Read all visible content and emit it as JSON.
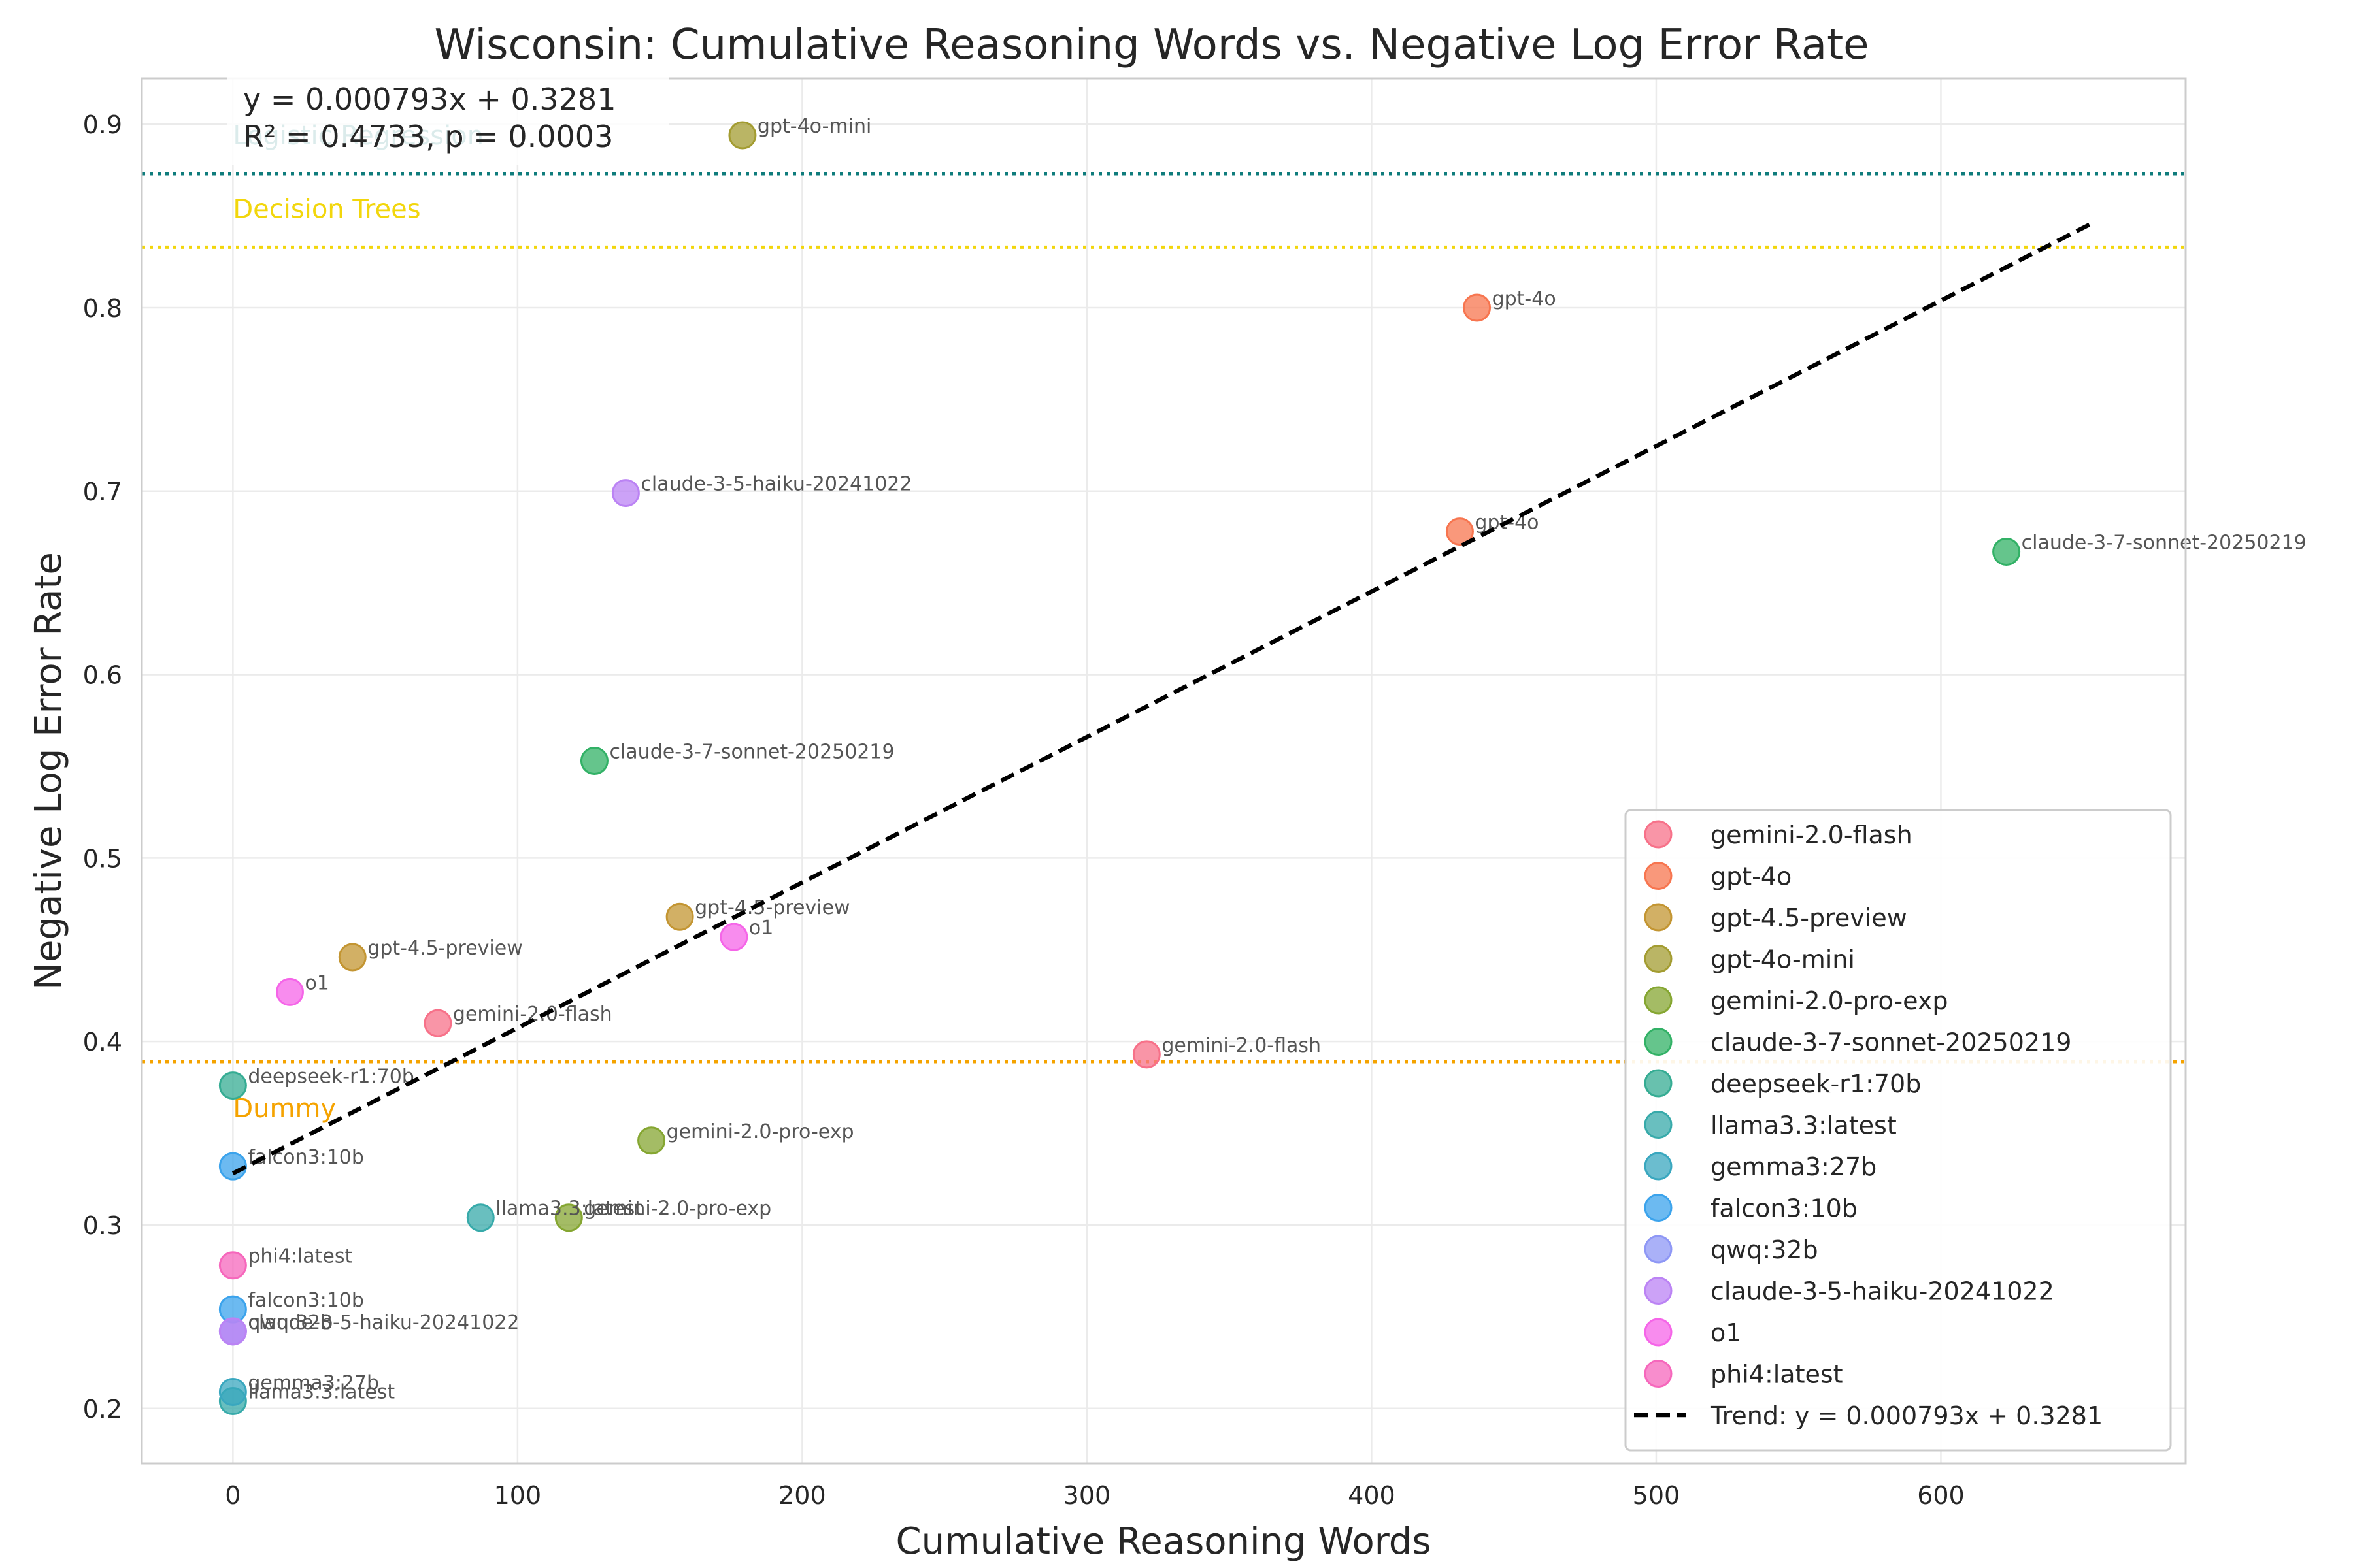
{
  "chart_data": {
    "type": "scatter",
    "title": "Wisconsin: Cumulative Reasoning Words vs. Negative Log Error Rate",
    "xlabel": "Cumulative Reasoning Words",
    "ylabel": "Negative Log Error Rate",
    "xlim": [
      -32,
      686
    ],
    "ylim": [
      0.17,
      0.925
    ],
    "x_ticks": [
      0,
      100,
      200,
      300,
      400,
      500,
      600
    ],
    "y_ticks": [
      0.2,
      0.3,
      0.4,
      0.5,
      0.6,
      0.7,
      0.8,
      0.9
    ],
    "x_tick_labels": [
      "0",
      "100",
      "200",
      "300",
      "400",
      "500",
      "600"
    ],
    "y_tick_labels": [
      "0.2",
      "0.3",
      "0.4",
      "0.5",
      "0.6",
      "0.7",
      "0.8",
      "0.9"
    ],
    "grid": true,
    "legend_position": "lower-right",
    "stats_text": [
      "y = 0.000793x + 0.3281",
      "R² = 0.4733, p = 0.0003"
    ],
    "trend": {
      "label": "Trend: y = 0.000793x + 0.3281",
      "slope": 0.000793,
      "intercept": 0.3281,
      "x_range": [
        0,
        653
      ],
      "color": "#000000"
    },
    "baselines": [
      {
        "label": "Logistic Regression",
        "y": 0.873,
        "color": "#0f7c7c"
      },
      {
        "label": "Decision Trees",
        "y": 0.833,
        "color": "#f2d60c"
      },
      {
        "label": "Dummy",
        "y": 0.389,
        "color": "#f5a300"
      }
    ],
    "series": [
      {
        "name": "gemini-2.0-flash",
        "color": "#f77189",
        "points": [
          {
            "x": 72,
            "y": 0.41,
            "label": "gemini-2.0-flash"
          },
          {
            "x": 321,
            "y": 0.393,
            "label": "gemini-2.0-flash"
          }
        ]
      },
      {
        "name": "gpt-4o",
        "color": "#f7754f",
        "points": [
          {
            "x": 437,
            "y": 0.8,
            "label": "gpt-4o"
          },
          {
            "x": 431,
            "y": 0.678,
            "label": "gpt-4o"
          }
        ]
      },
      {
        "name": "gpt-4.5-preview",
        "color": "#c39532",
        "points": [
          {
            "x": 42,
            "y": 0.446,
            "label": "gpt-4.5-preview"
          },
          {
            "x": 157,
            "y": 0.468,
            "label": "gpt-4.5-preview"
          }
        ]
      },
      {
        "name": "gpt-4o-mini",
        "color": "#a39c31",
        "points": [
          {
            "x": 179,
            "y": 0.894,
            "label": "gpt-4o-mini"
          }
        ]
      },
      {
        "name": "gemini-2.0-pro-exp",
        "color": "#85a631",
        "points": [
          {
            "x": 147,
            "y": 0.346,
            "label": "gemini-2.0-pro-exp"
          },
          {
            "x": 118,
            "y": 0.304,
            "label": "gemini-2.0-pro-exp"
          }
        ]
      },
      {
        "name": "claude-3-7-sonnet-20250219",
        "color": "#32b166",
        "points": [
          {
            "x": 127,
            "y": 0.553,
            "label": "claude-3-7-sonnet-20250219"
          },
          {
            "x": 623,
            "y": 0.667,
            "label": "claude-3-7-sonnet-20250219"
          }
        ]
      },
      {
        "name": "deepseek-r1:70b",
        "color": "#35ac93",
        "points": [
          {
            "x": 0,
            "y": 0.376,
            "label": "deepseek-r1:70b"
          }
        ]
      },
      {
        "name": "llama3.3:latest",
        "color": "#37aaaa",
        "points": [
          {
            "x": 87,
            "y": 0.304,
            "label": "llama3.3:latest"
          },
          {
            "x": 0,
            "y": 0.204,
            "label": "llama3.3:latest"
          }
        ]
      },
      {
        "name": "gemma3:27b",
        "color": "#39a7bf",
        "points": [
          {
            "x": 0,
            "y": 0.209,
            "label": "gemma3:27b"
          }
        ]
      },
      {
        "name": "falcon3:10b",
        "color": "#3ba3ec",
        "points": [
          {
            "x": 0,
            "y": 0.332,
            "label": "falcon3:10b"
          },
          {
            "x": 0,
            "y": 0.254,
            "label": "falcon3:10b"
          }
        ]
      },
      {
        "name": "qwq:32b",
        "color": "#8e97f5",
        "points": [
          {
            "x": 0,
            "y": 0.242,
            "label": "qwq:32b"
          }
        ]
      },
      {
        "name": "claude-3-5-haiku-20241022",
        "color": "#bb83f4",
        "points": [
          {
            "x": 138,
            "y": 0.699,
            "label": "claude-3-5-haiku-20241022"
          },
          {
            "x": 0,
            "y": 0.242,
            "label": "claude-3-5-haiku-20241022"
          }
        ]
      },
      {
        "name": "o1",
        "color": "#f565e8",
        "points": [
          {
            "x": 20,
            "y": 0.427,
            "label": "o1"
          },
          {
            "x": 176,
            "y": 0.457,
            "label": "o1"
          }
        ]
      },
      {
        "name": "phi4:latest",
        "color": "#f667bc",
        "points": [
          {
            "x": 0,
            "y": 0.278,
            "label": "phi4:latest"
          }
        ]
      }
    ]
  }
}
